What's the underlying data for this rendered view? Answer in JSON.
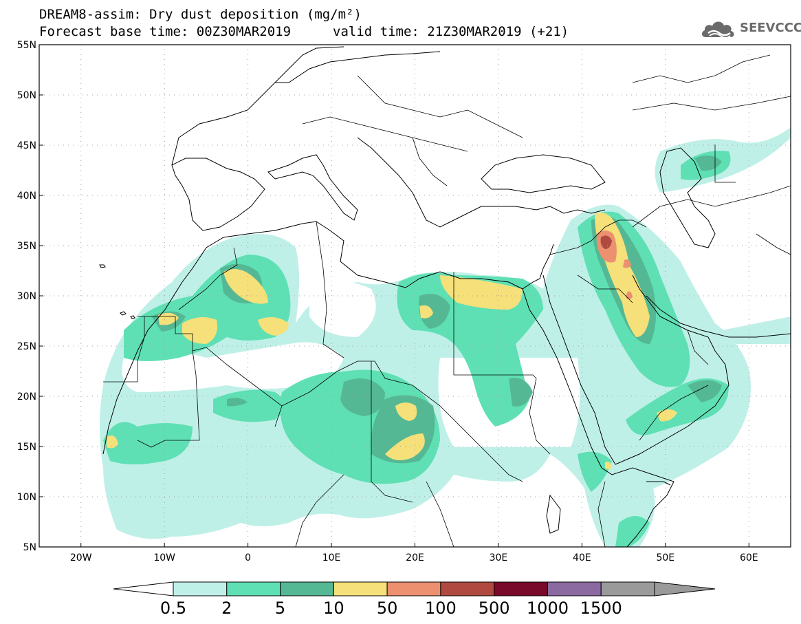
{
  "title": {
    "line1": "DREAM8-assim: Dry dust deposition (mg/m²)",
    "line2": "Forecast base time: 00Z30MAR2019",
    "line3": "valid time: 21Z30MAR2019 (+21)"
  },
  "logo": {
    "text": "SEEVCCC",
    "icon": "cloud-logo-icon",
    "color": "#6b6b6b"
  },
  "map": {
    "lon_range": [
      -25,
      65
    ],
    "lat_range": [
      5,
      55
    ],
    "lat_ticks": [
      "55N",
      "50N",
      "45N",
      "40N",
      "35N",
      "30N",
      "25N",
      "20N",
      "15N",
      "10N",
      "5N"
    ],
    "lon_ticks": [
      "20W",
      "10W",
      "0",
      "10E",
      "20E",
      "30E",
      "40E",
      "50E",
      "60E"
    ]
  },
  "colorbar": {
    "labels": [
      "0.5",
      "2",
      "5",
      "10",
      "50",
      "100",
      "500",
      "1000",
      "1500"
    ],
    "colors": [
      "#bff0e8",
      "#5fe0b4",
      "#55b894",
      "#f5e07a",
      "#ec9070",
      "#b04a40",
      "#7a0a2a",
      "#8a6aa0",
      "#9a9a9a"
    ]
  }
}
